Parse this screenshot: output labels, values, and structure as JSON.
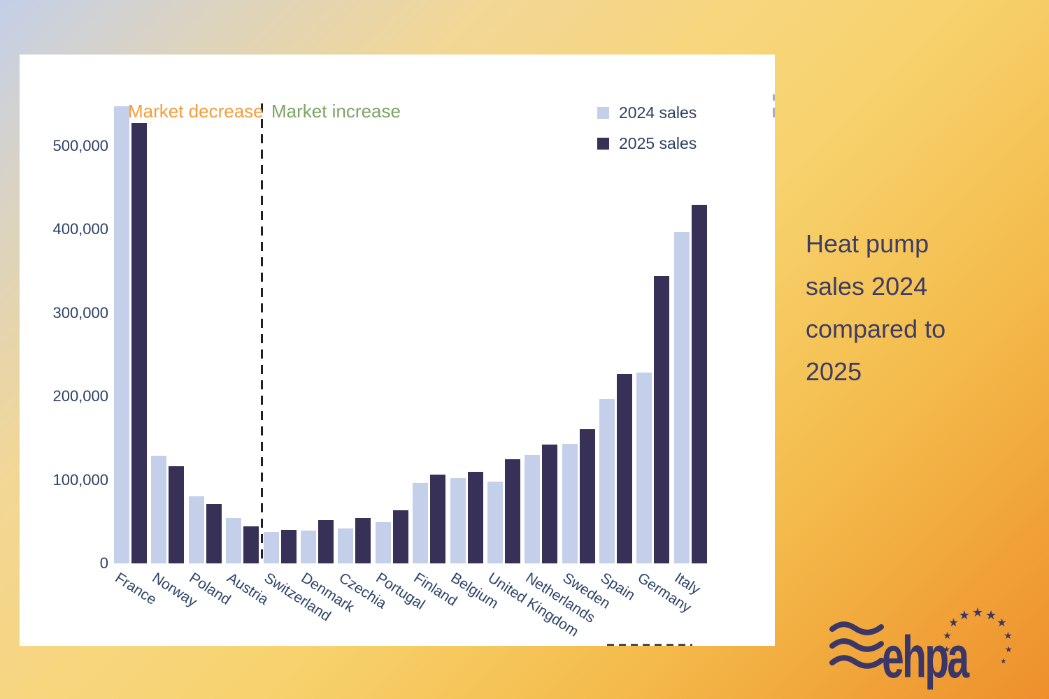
{
  "page": {
    "side_title": "Heat pump sales 2024 compared to 2025"
  },
  "chart": {
    "legend": [
      {
        "label": "2024 sales",
        "color": "#c4d0ea"
      },
      {
        "label": "2025 sales",
        "color": "#373057"
      }
    ],
    "zone_labels": {
      "decrease": {
        "text": "Market decrease",
        "color": "#f59d3b"
      },
      "increase": {
        "text": "Market increase",
        "color": "#7da565"
      }
    },
    "y_ticks": [
      "0",
      "100,000",
      "200,000",
      "300,000",
      "400,000",
      "500,000"
    ]
  },
  "chart_data": {
    "type": "bar",
    "title": "Heat pump sales 2024 compared to 2025",
    "categories": [
      "France",
      "Norway",
      "Poland",
      "Austria",
      "Switzerland",
      "Denmark",
      "Czechia",
      "Portugal",
      "Finland",
      "Belgium",
      "United Kingdom",
      "Netherlands",
      "Sweden",
      "Spain",
      "Germany",
      "Italy"
    ],
    "series": [
      {
        "name": "2024 sales",
        "color": "#c4d0ea",
        "values": [
          547000,
          128500,
          80000,
          54000,
          37500,
          39000,
          41500,
          49000,
          96500,
          102500,
          98000,
          129500,
          143000,
          197000,
          228500,
          396500
        ]
      },
      {
        "name": "2025 sales",
        "color": "#373057",
        "values": [
          527000,
          116500,
          71000,
          44500,
          40000,
          52000,
          54500,
          64000,
          106500,
          110000,
          124500,
          142000,
          160500,
          226500,
          344000,
          429500
        ]
      }
    ],
    "xlabel": "",
    "ylabel": "",
    "ylim": [
      0,
      560000
    ],
    "y_tick_interval": 100000,
    "grid": false,
    "legend_position": "top-right",
    "separator": {
      "after_category": "Austria",
      "style": "dashed",
      "left_zone_label": "Market decrease",
      "right_zone_label": "Market increase"
    }
  },
  "logo": {
    "text": "ehpa",
    "star_count": 11
  }
}
